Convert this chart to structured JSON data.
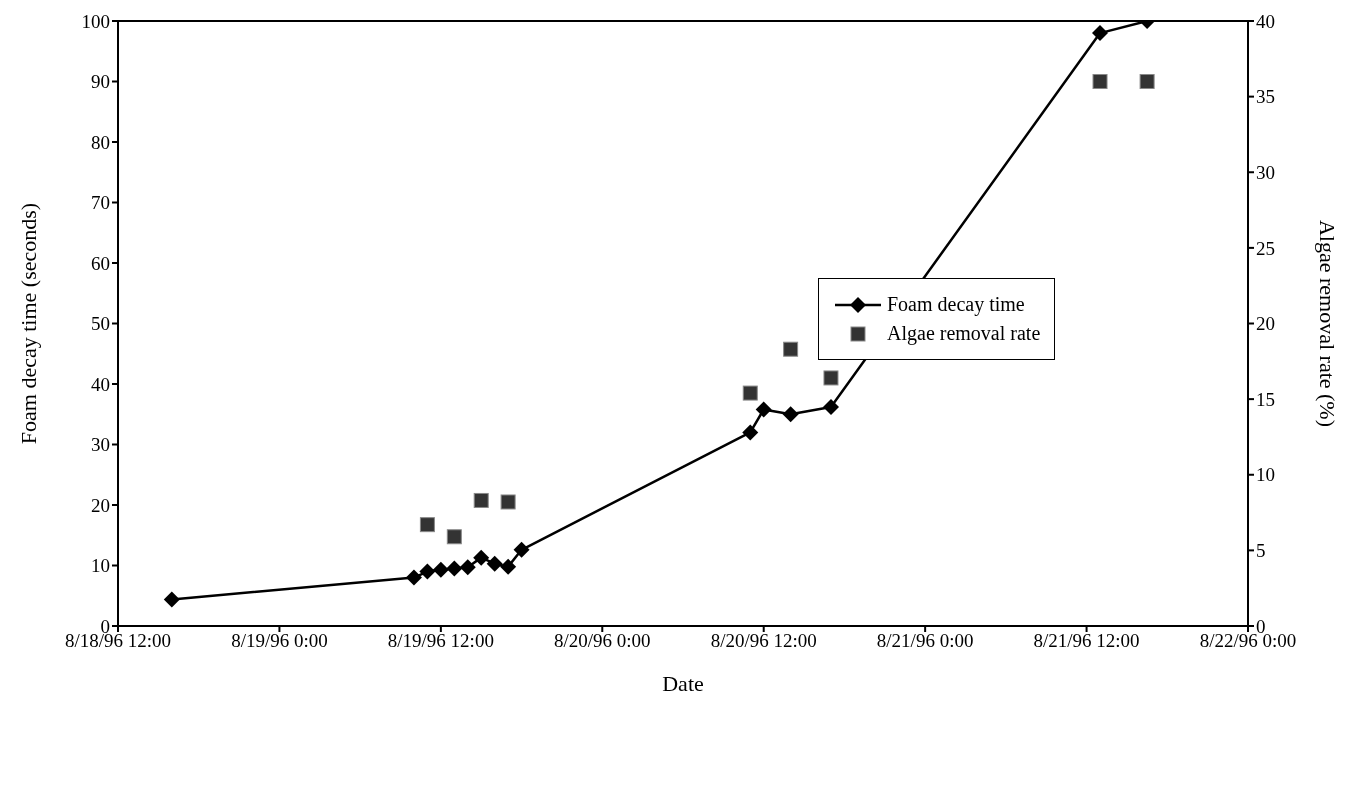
{
  "chart_data": {
    "type": "line",
    "xlabel": "Date",
    "ylabel": "Foam decay time (seconds)",
    "y2label": "Algae removal rate (%)",
    "xlim": [
      "1996-08-18T12:00",
      "1996-08-22T00:00"
    ],
    "xticks": [
      {
        "value": "1996-08-18T12:00",
        "label": "8/18/96 12:00"
      },
      {
        "value": "1996-08-19T00:00",
        "label": "8/19/96 0:00"
      },
      {
        "value": "1996-08-19T12:00",
        "label": "8/19/96 12:00"
      },
      {
        "value": "1996-08-20T00:00",
        "label": "8/20/96 0:00"
      },
      {
        "value": "1996-08-20T12:00",
        "label": "8/20/96 12:00"
      },
      {
        "value": "1996-08-21T00:00",
        "label": "8/21/96 0:00"
      },
      {
        "value": "1996-08-21T12:00",
        "label": "8/21/96 12:00"
      },
      {
        "value": "1996-08-22T00:00",
        "label": "8/22/96 0:00"
      }
    ],
    "ylim": [
      0,
      100
    ],
    "yticks": [
      0,
      10,
      20,
      30,
      40,
      50,
      60,
      70,
      80,
      90,
      100
    ],
    "y2lim": [
      0,
      40
    ],
    "y2ticks": [
      0,
      5,
      10,
      15,
      20,
      25,
      30,
      35,
      40
    ],
    "legend": "right",
    "series": [
      {
        "name": "Foam decay time",
        "color": "#000000",
        "marker": "diamond",
        "x": [
          "1996-08-18T16:00",
          "1996-08-19T10:00",
          "1996-08-19T11:00",
          "1996-08-19T12:00",
          "1996-08-19T13:00",
          "1996-08-19T14:00",
          "1996-08-19T15:00",
          "1996-08-19T16:00",
          "1996-08-19T17:00",
          "1996-08-19T18:00",
          "1996-08-20T11:00",
          "1996-08-20T12:00",
          "1996-08-20T14:00",
          "1996-08-20T17:00",
          "1996-08-21T13:00",
          "1996-08-21T16:30"
        ],
        "values": [
          4.4,
          8,
          9,
          9.3,
          9.5,
          9.7,
          11.3,
          10.3,
          9.8,
          12.6,
          32,
          35.8,
          35,
          36.2,
          98,
          100
        ]
      },
      {
        "name": "Algae removal rate",
        "type": "scatter",
        "axis": "y2",
        "color": "#333333",
        "marker": "square",
        "x": [
          "1996-08-19T11:00",
          "1996-08-19T13:00",
          "1996-08-19T15:00",
          "1996-08-19T17:00",
          "1996-08-20T11:00",
          "1996-08-20T14:00",
          "1996-08-20T17:00",
          "1996-08-21T13:00",
          "1996-08-21T16:30"
        ],
        "values": [
          6.7,
          5.9,
          8.3,
          8.2,
          15.4,
          18.3,
          16.4,
          36,
          36
        ]
      }
    ]
  }
}
